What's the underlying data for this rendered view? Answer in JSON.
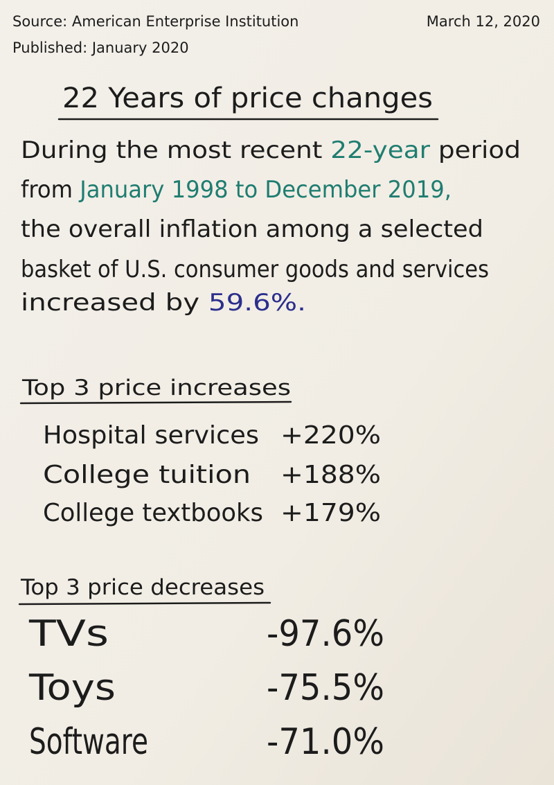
{
  "header": {
    "source": "Source: American Enterprise Institution",
    "published": "Published: January 2020",
    "date": "March 12, 2020"
  },
  "title": "22 Years of price changes",
  "paragraph": {
    "lines": [
      [
        {
          "text": "During the most recent ",
          "color": "#1c1c1c"
        },
        {
          "text": "22-year",
          "color": "#1f7d70"
        },
        {
          "text": " period",
          "color": "#1c1c1c"
        }
      ],
      [
        {
          "text": "from ",
          "color": "#1c1c1c"
        },
        {
          "text": "January 1998 to December 2019,",
          "color": "#1f7d70"
        }
      ],
      [
        {
          "text": "the overall inflation among a selected",
          "color": "#1c1c1c"
        }
      ],
      [
        {
          "text": "basket of U.S. consumer goods and services",
          "color": "#1c1c1c"
        }
      ],
      [
        {
          "text": "increased by ",
          "color": "#1c1c1c"
        },
        {
          "text": "59.6%.",
          "color": "#2b2f8c"
        }
      ]
    ]
  },
  "increases": {
    "heading": "Top 3 price increases",
    "color": "#2b2f8c",
    "items": [
      {
        "label": "Hospital services",
        "value": "+220%"
      },
      {
        "label": "College tuition",
        "value": "+188%"
      },
      {
        "label": "College textbooks",
        "value": "+179%"
      }
    ]
  },
  "decreases": {
    "heading": "Top 3 price decreases",
    "color": "#d8352b",
    "items": [
      {
        "label": "TVs",
        "value": "-97.6%"
      },
      {
        "label": "Toys",
        "value": "-75.5%"
      },
      {
        "label": "Software",
        "value": "-71.0%"
      }
    ]
  }
}
